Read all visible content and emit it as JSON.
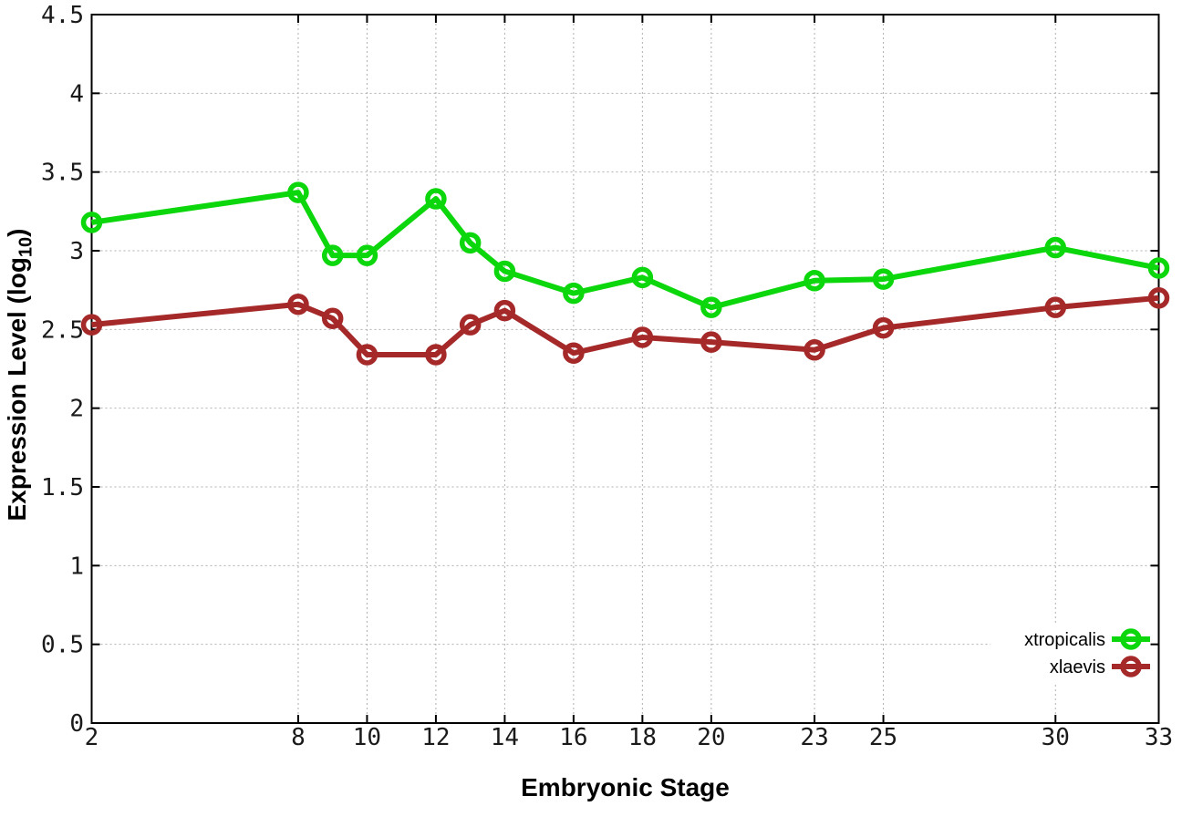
{
  "chart_data": {
    "type": "line",
    "title": "",
    "xlabel": "Embryonic Stage",
    "ylabel": "Expression Level (log10)",
    "ylabel_parts": {
      "prefix": "Expression Level (log",
      "sub": "10",
      "suffix": ")"
    },
    "xlim": [
      2,
      33
    ],
    "ylim": [
      0,
      4.5
    ],
    "grid": true,
    "legend_position": "inside-bottom-right",
    "x_ticks": [
      2,
      8,
      10,
      12,
      14,
      16,
      18,
      20,
      23,
      25,
      30,
      33
    ],
    "x_tick_labels": [
      "2",
      "8",
      "10",
      "12",
      "14",
      "16",
      "18",
      "20",
      "23",
      "25",
      "30",
      "33"
    ],
    "y_ticks": [
      0,
      0.5,
      1,
      1.5,
      2,
      2.5,
      3,
      3.5,
      4,
      4.5
    ],
    "y_tick_labels": [
      "0",
      "0.5",
      "1",
      "1.5",
      "2",
      "2.5",
      "3",
      "3.5",
      "4",
      "4.5"
    ],
    "x": [
      2,
      8,
      9,
      10,
      12,
      13,
      14,
      16,
      18,
      20,
      23,
      25,
      30,
      33
    ],
    "series": [
      {
        "name": "xtropicalis",
        "color": "#0cd60c",
        "values": [
          3.18,
          3.37,
          2.97,
          2.97,
          3.33,
          3.05,
          2.87,
          2.73,
          2.83,
          2.64,
          2.81,
          2.82,
          3.02,
          2.89
        ]
      },
      {
        "name": "xlaevis",
        "color": "#a52929",
        "values": [
          2.53,
          2.66,
          2.57,
          2.34,
          2.34,
          2.53,
          2.62,
          2.35,
          2.45,
          2.42,
          2.37,
          2.51,
          2.64,
          2.7
        ]
      }
    ]
  },
  "colors": {
    "grid": "#b0b0b0",
    "axis": "#000000",
    "tick_label": "#1a1a1a",
    "legend_text": "#000000",
    "background": "#ffffff"
  }
}
